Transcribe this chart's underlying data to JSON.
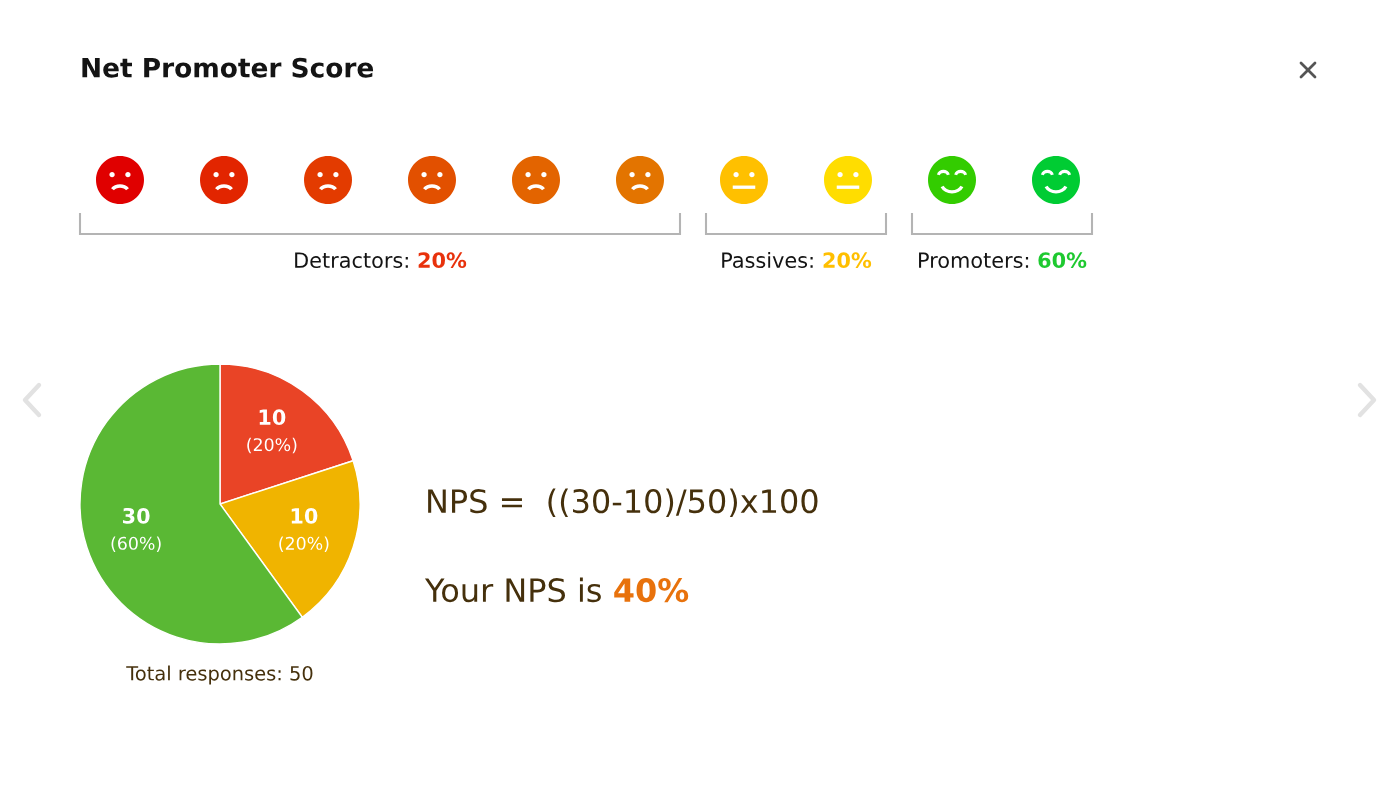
{
  "chart_data": [
    {
      "type": "other",
      "title": "Net Promoter Score",
      "annotations": [
        "Detractors: 20%",
        "Passives: 20%",
        "Promoters: 60%"
      ],
      "colors": [
        "#e8320c",
        "#ffbf00",
        "#1ec930"
      ]
    },
    {
      "type": "pie",
      "categories": [
        null,
        null,
        null
      ],
      "values": [
        10,
        10,
        30
      ],
      "colors": [
        "#e94426",
        "#f0b400",
        "#5ab834"
      ],
      "value_labels": [
        "10\n(20%)",
        "10\n(20%)",
        "30\n(60%)"
      ],
      "annotations": [
        "NPS =  ((30-10)/50)x100",
        "Your NPS is 40%",
        "Total responses: 50"
      ]
    }
  ]
}
